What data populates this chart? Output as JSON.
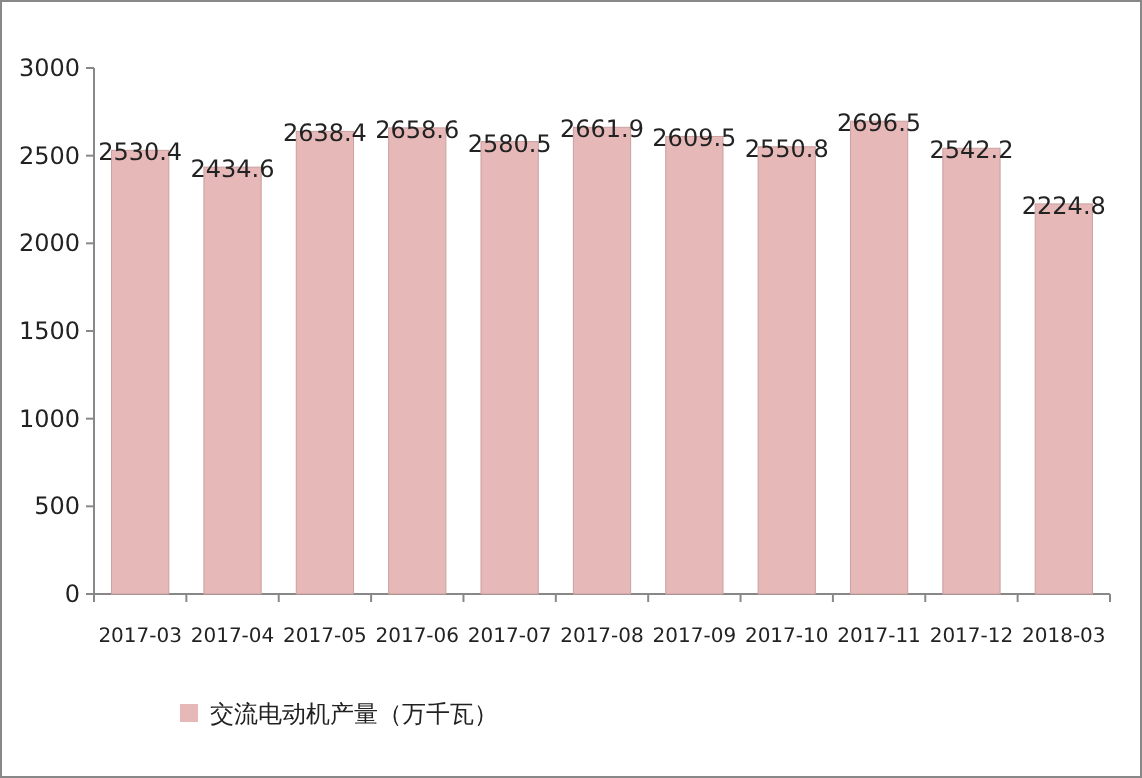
{
  "chart_data": {
    "type": "bar",
    "categories": [
      "2017-03",
      "2017-04",
      "2017-05",
      "2017-06",
      "2017-07",
      "2017-08",
      "2017-09",
      "2017-10",
      "2017-11",
      "2017-12",
      "2018-03"
    ],
    "series": [
      {
        "name": "交流电动机产量（万千瓦）",
        "color": "#e6b8b7",
        "values": [
          2530.4,
          2434.6,
          2638.4,
          2658.6,
          2580.5,
          2661.9,
          2609.5,
          2550.8,
          2696.5,
          2542.2,
          2224.8
        ]
      }
    ],
    "ylim": [
      0,
      3000
    ],
    "yticks": [
      0,
      500,
      1000,
      1500,
      2000,
      2500,
      3000
    ],
    "data_labels": true,
    "legend": "bottom"
  }
}
